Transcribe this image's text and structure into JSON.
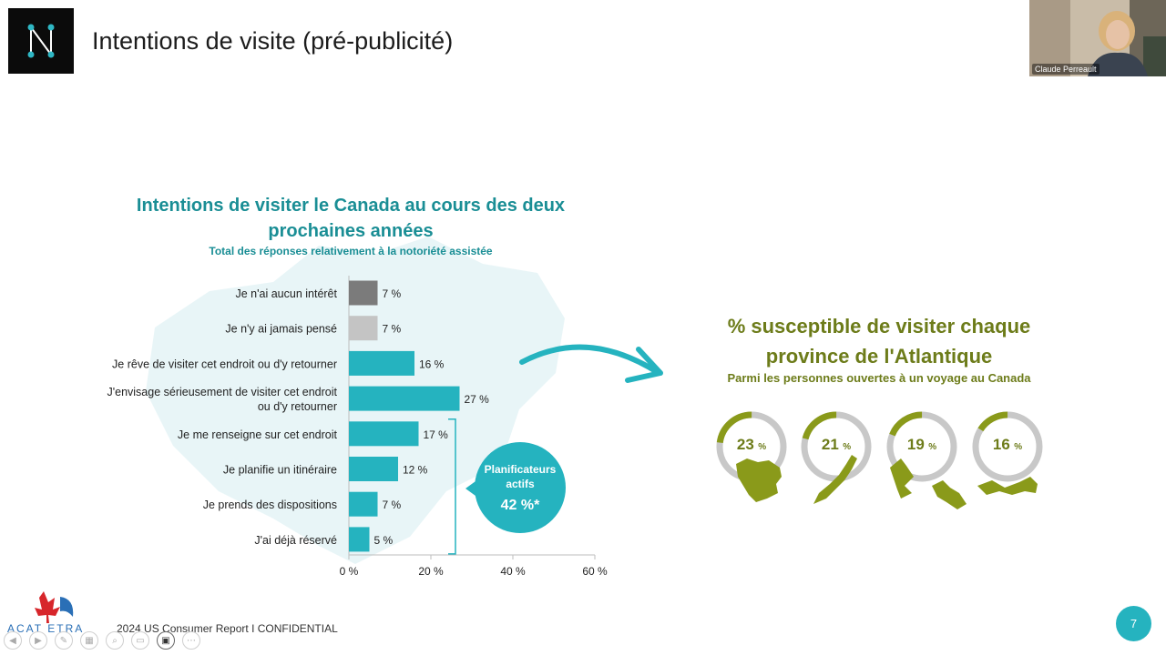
{
  "slide": {
    "title": "Intentions de visite (pré-publicité)",
    "page_number": "7",
    "footer": "2024 US Consumer Report  I  CONFIDENTIAL"
  },
  "video": {
    "participant_name": "Claude Perreault"
  },
  "left_chart": {
    "title": "Intentions de visiter le Canada au cours des deux prochaines années",
    "subtitle": "Total des réponses relativement à la notoriété assistée",
    "planners": {
      "label": "Planificateurs actifs",
      "value": "42 %*"
    }
  },
  "chart_data": {
    "type": "bar",
    "orientation": "horizontal",
    "title": "Intentions de visiter le Canada au cours des deux prochaines années",
    "subtitle": "Total des réponses relativement à la notoriété assistée",
    "categories": [
      "Je n'ai aucun intérêt",
      "Je n'y ai jamais pensé",
      "Je rêve de visiter cet endroit ou d'y retourner",
      "J'envisage sérieusement de visiter cet endroit ou d'y retourner",
      "Je me renseigne sur cet endroit",
      "Je planifie un itinéraire",
      "Je prends des dispositions",
      "J'ai déjà réservé"
    ],
    "values": [
      7,
      7,
      16,
      27,
      17,
      12,
      7,
      5
    ],
    "value_labels": [
      "7 %",
      "7 %",
      "16 %",
      "27 %",
      "17 %",
      "12 %",
      "7 %",
      "5 %"
    ],
    "bar_colors": [
      "#7b7b7b",
      "#c4c4c4",
      "#25b3bf",
      "#25b3bf",
      "#25b3bf",
      "#25b3bf",
      "#25b3bf",
      "#25b3bf"
    ],
    "xlim": [
      0,
      60
    ],
    "xticks": [
      0,
      20,
      40,
      60
    ],
    "xtick_labels": [
      "0 %",
      "20 %",
      "40 %",
      "60 %"
    ],
    "grid": false
  },
  "atlantic": {
    "title_line1": "%  susceptible de visiter chaque",
    "title_line2": "province de l'Atlantique",
    "subtitle": "Parmi les personnes ouvertes à un voyage au Canada",
    "provinces": [
      {
        "pct": "23",
        "unit": "%",
        "value": 23,
        "icon": "new-brunswick-map-icon"
      },
      {
        "pct": "21",
        "unit": "%",
        "value": 21,
        "icon": "nova-scotia-map-icon"
      },
      {
        "pct": "19",
        "unit": "%",
        "value": 19,
        "icon": "newfoundland-labrador-map-icon"
      },
      {
        "pct": "16",
        "unit": "%",
        "value": 16,
        "icon": "prince-edward-island-map-icon"
      }
    ]
  },
  "branding": {
    "footer_logo_text": "ACAT ETRA"
  },
  "colors": {
    "teal": "#25b3bf",
    "teal_text": "#1a8e95",
    "olive": "#6d7c1a",
    "province_green": "#8a9a1a",
    "ring_gray": "#c8c8c8"
  },
  "toolbar": {
    "icons": [
      "previous-slide-icon",
      "next-slide-icon",
      "pen-icon",
      "slides-grid-icon",
      "zoom-icon",
      "subtitles-icon",
      "camera-icon",
      "more-options-icon"
    ]
  }
}
